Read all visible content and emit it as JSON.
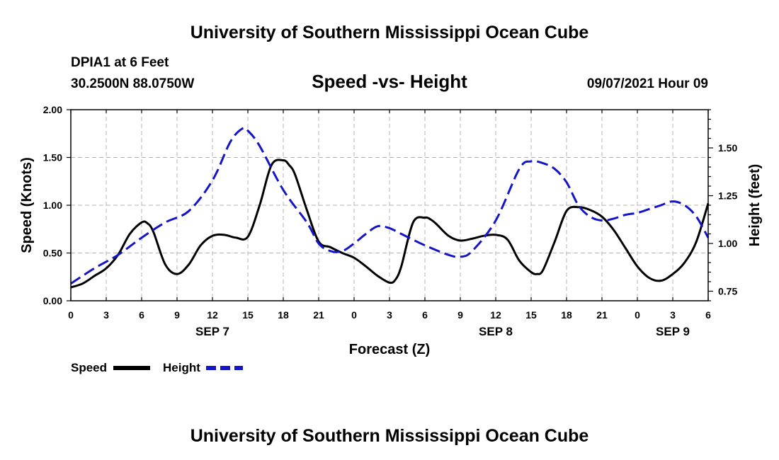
{
  "header": {
    "title": "University of Southern Mississippi Ocean Cube",
    "station": "DPIA1 at 6 Feet",
    "coords": "30.2500N  88.0750W",
    "plot_title": "Speed -vs- Height",
    "datetime": "09/07/2021 Hour 09"
  },
  "footer": {
    "title": "University of Southern Mississippi Ocean Cube"
  },
  "legend": {
    "speed": "Speed",
    "height": "Height"
  },
  "colors": {
    "speed": "#000000",
    "height": "#1515c8",
    "grid": "#b4b4b4"
  },
  "chart_data": {
    "type": "line",
    "title": "Speed -vs- Height",
    "xlabel": "Forecast (Z)",
    "ylabel": "Speed (Knots)",
    "y2label": "Height (feet)",
    "xlim": [
      0,
      54
    ],
    "ylim": [
      0,
      2
    ],
    "y2lim": [
      0.7,
      1.7
    ],
    "x_ticks": [
      0,
      3,
      6,
      9,
      12,
      15,
      18,
      21,
      24,
      27,
      30,
      33,
      36,
      39,
      42,
      45,
      48,
      51,
      54
    ],
    "x_tick_labels": [
      "0",
      "3",
      "6",
      "9",
      "12",
      "15",
      "18",
      "21",
      "0",
      "3",
      "6",
      "9",
      "12",
      "15",
      "18",
      "21",
      "0",
      "3",
      "6"
    ],
    "y_ticks": [
      0,
      0.5,
      1,
      1.5,
      2
    ],
    "y_tick_labels": [
      "0.00",
      "0.50",
      "1.00",
      "1.50",
      "2.00"
    ],
    "y2_ticks": [
      0.75,
      1.0,
      1.25,
      1.5
    ],
    "y2_tick_labels": [
      "0.75",
      "1.00",
      "1.25",
      "1.50"
    ],
    "day_labels": [
      {
        "x": 12,
        "label": "SEP 7"
      },
      {
        "x": 36,
        "label": "SEP 8"
      },
      {
        "x": 51,
        "label": "SEP 9"
      }
    ],
    "grid": true,
    "series": [
      {
        "name": "Speed",
        "axis": "left",
        "style": "solid",
        "x": [
          0,
          1,
          2,
          3,
          4,
          5,
          6,
          6.5,
          7,
          8,
          9,
          10,
          11,
          12,
          13,
          14,
          15,
          16,
          17,
          18,
          18.5,
          19,
          20,
          21,
          22,
          23,
          24,
          25,
          26,
          27,
          27.5,
          28,
          29,
          30,
          30.5,
          31,
          32,
          33,
          34,
          35,
          36,
          37,
          38,
          39,
          39.5,
          40,
          41,
          42,
          43,
          44,
          45,
          46,
          47,
          48,
          49,
          50,
          51,
          52,
          53,
          54
        ],
        "y": [
          0.14,
          0.18,
          0.26,
          0.34,
          0.48,
          0.7,
          0.82,
          0.81,
          0.72,
          0.38,
          0.28,
          0.38,
          0.58,
          0.68,
          0.69,
          0.66,
          0.67,
          1.0,
          1.42,
          1.47,
          1.42,
          1.32,
          0.95,
          0.62,
          0.56,
          0.5,
          0.45,
          0.36,
          0.26,
          0.19,
          0.22,
          0.36,
          0.82,
          0.87,
          0.85,
          0.8,
          0.68,
          0.63,
          0.65,
          0.68,
          0.69,
          0.64,
          0.42,
          0.3,
          0.28,
          0.32,
          0.62,
          0.94,
          0.98,
          0.95,
          0.88,
          0.74,
          0.55,
          0.36,
          0.24,
          0.21,
          0.28,
          0.4,
          0.62,
          1.02
        ]
      },
      {
        "name": "Height",
        "axis": "right",
        "style": "dashed",
        "x": [
          0,
          2,
          4,
          6,
          8,
          10,
          12,
          13.5,
          14.5,
          15,
          16,
          18,
          20,
          21,
          22,
          23,
          24,
          25,
          26,
          27,
          28,
          30,
          32,
          33,
          34,
          36,
          38,
          39,
          40,
          41,
          42,
          43,
          44,
          45,
          46,
          47,
          48,
          49,
          50,
          51,
          52,
          53,
          54
        ],
        "y": [
          0.79,
          0.87,
          0.94,
          1.03,
          1.11,
          1.17,
          1.33,
          1.53,
          1.6,
          1.59,
          1.51,
          1.28,
          1.11,
          1.0,
          0.96,
          0.96,
          1.0,
          1.05,
          1.09,
          1.08,
          1.05,
          0.99,
          0.94,
          0.93,
          0.96,
          1.12,
          1.39,
          1.43,
          1.42,
          1.39,
          1.32,
          1.2,
          1.14,
          1.12,
          1.13,
          1.15,
          1.16,
          1.18,
          1.2,
          1.22,
          1.2,
          1.14,
          1.03
        ]
      }
    ]
  }
}
